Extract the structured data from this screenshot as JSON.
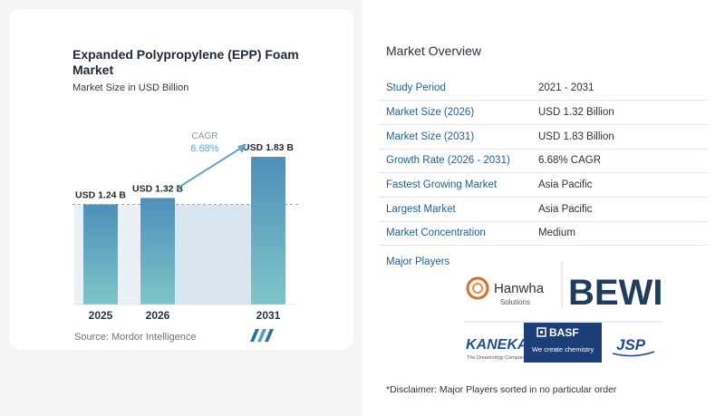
{
  "chart": {
    "title": "Expanded Polypropylene (EPP) Foam Market",
    "subtitle": "Market Size in USD Billion",
    "source": "Source:  Mordor Intelligence",
    "cagr_label": "CAGR",
    "cagr_value": "6.68%"
  },
  "chart_data": {
    "type": "bar",
    "title": "Expanded Polypropylene (EPP) Foam Market",
    "subtitle": "Market Size in USD Billion",
    "categories": [
      "2025",
      "2026",
      "2031"
    ],
    "values": [
      1.24,
      1.32,
      1.83
    ],
    "data_labels": [
      "USD 1.24 B",
      "USD 1.32 B",
      "USD 1.83 B"
    ],
    "annotation": "CAGR 6.68%",
    "ylim": [
      0,
      1.95
    ],
    "grid": false,
    "colors": {
      "bar_top": "#4f8fba",
      "bar_bottom": "#7fc4c8",
      "band": "#d8e6f0",
      "accent": "#5aa9c9"
    }
  },
  "overview": {
    "title": "Market Overview",
    "rows": [
      {
        "key": "Study Period",
        "value": "2021 - 2031"
      },
      {
        "key": "Market Size (2026)",
        "value": "USD 1.32 Billion"
      },
      {
        "key": "Market Size (2031)",
        "value": "USD 1.83 Billion"
      },
      {
        "key": "Growth Rate (2026 - 2031)",
        "value": "6.68% CAGR"
      },
      {
        "key": "Fastest Growing Market",
        "value": "Asia Pacific"
      },
      {
        "key": "Largest Market",
        "value": "Asia Pacific"
      },
      {
        "key": "Market Concentration",
        "value": "Medium"
      }
    ]
  },
  "players": {
    "title": "Major Players",
    "logos": {
      "hanwha": "Hanwha",
      "hanwha_sub": "Solutions",
      "bewi": "BEWI",
      "kaneka": "KANEKA",
      "kaneka_sub": "The Dreamology Company",
      "basf": "BASF",
      "basf_sub": "We create chemistry",
      "jsp": "JSP"
    }
  },
  "disclaimer": "*Disclaimer: Major Players sorted in no particular order"
}
